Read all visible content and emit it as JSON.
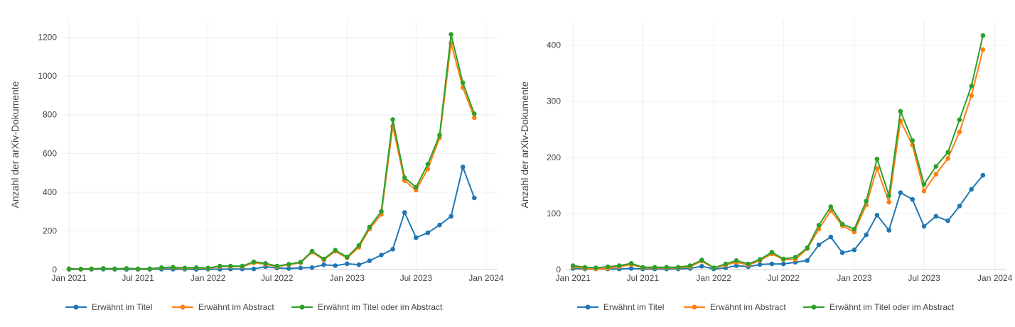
{
  "chart_data": [
    {
      "type": "line",
      "ylabel": "Anzahl der arXiv-Dokumente",
      "xlabel": "",
      "ylim": [
        0,
        1290
      ],
      "yticks": [
        0,
        200,
        400,
        600,
        800,
        1000,
        1200
      ],
      "xlim": [
        "2020-12-15",
        "2024-01-31"
      ],
      "xticks": [
        {
          "date": "2021-01-01",
          "label": "Jan 2021"
        },
        {
          "date": "2021-07-01",
          "label": "Jul 2021"
        },
        {
          "date": "2022-01-01",
          "label": "Jan 2022"
        },
        {
          "date": "2022-07-01",
          "label": "Jul 2022"
        },
        {
          "date": "2023-01-01",
          "label": "Jan 2023"
        },
        {
          "date": "2023-07-01",
          "label": "Jul 2023"
        },
        {
          "date": "2024-01-01",
          "label": "Jan 2024"
        }
      ],
      "grid": true,
      "legend_position": "bottom",
      "x": [
        "2021-01-01",
        "2021-02-01",
        "2021-03-01",
        "2021-04-01",
        "2021-05-01",
        "2021-06-01",
        "2021-07-01",
        "2021-08-01",
        "2021-09-01",
        "2021-10-01",
        "2021-11-01",
        "2021-12-01",
        "2022-01-01",
        "2022-02-01",
        "2022-03-01",
        "2022-04-01",
        "2022-05-01",
        "2022-06-01",
        "2022-07-01",
        "2022-08-01",
        "2022-09-01",
        "2022-10-01",
        "2022-11-01",
        "2022-12-01",
        "2023-01-01",
        "2023-02-01",
        "2023-03-01",
        "2023-04-01",
        "2023-05-01",
        "2023-06-01",
        "2023-07-01",
        "2023-08-01",
        "2023-09-01",
        "2023-10-01",
        "2023-11-01",
        "2023-12-01"
      ],
      "series": [
        {
          "name": "Erwähnt im Titel",
          "color": "#1f77b4",
          "values": [
            1,
            1,
            1,
            2,
            1,
            1,
            1,
            1,
            2,
            2,
            2,
            1,
            2,
            2,
            3,
            3,
            3,
            15,
            8,
            5,
            8,
            10,
            25,
            20,
            30,
            25,
            45,
            75,
            105,
            295,
            165,
            190,
            230,
            275,
            530,
            370
          ]
        },
        {
          "name": "Erwähnt im Abstract",
          "color": "#ff7f0e",
          "values": [
            3,
            2,
            3,
            5,
            3,
            5,
            3,
            3,
            8,
            10,
            6,
            8,
            6,
            15,
            15,
            15,
            35,
            28,
            15,
            25,
            35,
            90,
            50,
            95,
            60,
            115,
            210,
            285,
            740,
            460,
            410,
            520,
            680,
            1170,
            940,
            785
          ]
        },
        {
          "name": "Erwähnt im Titel oder im Abstract",
          "color": "#2ca02c",
          "values": [
            4,
            3,
            4,
            6,
            4,
            6,
            4,
            4,
            10,
            12,
            8,
            10,
            8,
            18,
            18,
            18,
            40,
            32,
            18,
            28,
            38,
            95,
            55,
            100,
            65,
            125,
            220,
            300,
            775,
            475,
            425,
            545,
            695,
            1215,
            965,
            805
          ]
        }
      ]
    },
    {
      "type": "line",
      "ylabel": "Anzahl der arXiv-Dokumente",
      "xlabel": "",
      "ylim": [
        0,
        445
      ],
      "yticks": [
        0,
        100,
        200,
        300,
        400
      ],
      "xlim": [
        "2020-12-15",
        "2024-01-31"
      ],
      "xticks": [
        {
          "date": "2021-01-01",
          "label": "Jan 2021"
        },
        {
          "date": "2021-07-01",
          "label": "Jul 2021"
        },
        {
          "date": "2022-01-01",
          "label": "Jan 2022"
        },
        {
          "date": "2022-07-01",
          "label": "Jul 2022"
        },
        {
          "date": "2023-01-01",
          "label": "Jan 2023"
        },
        {
          "date": "2023-07-01",
          "label": "Jul 2023"
        },
        {
          "date": "2024-01-01",
          "label": "Jan 2024"
        }
      ],
      "grid": true,
      "legend_position": "bottom",
      "x": [
        "2021-01-01",
        "2021-02-01",
        "2021-03-01",
        "2021-04-01",
        "2021-05-01",
        "2021-06-01",
        "2021-07-01",
        "2021-08-01",
        "2021-09-01",
        "2021-10-01",
        "2021-11-01",
        "2021-12-01",
        "2022-01-01",
        "2022-02-01",
        "2022-03-01",
        "2022-04-01",
        "2022-05-01",
        "2022-06-01",
        "2022-07-01",
        "2022-08-01",
        "2022-09-01",
        "2022-10-01",
        "2022-11-01",
        "2022-12-01",
        "2023-01-01",
        "2023-02-01",
        "2023-03-01",
        "2023-04-01",
        "2023-05-01",
        "2023-06-01",
        "2023-07-01",
        "2023-08-01",
        "2023-09-01",
        "2023-10-01",
        "2023-11-01",
        "2023-12-01"
      ],
      "series": [
        {
          "name": "Erwähnt im Titel",
          "color": "#1f77b4",
          "values": [
            2,
            1,
            1,
            1,
            1,
            2,
            1,
            1,
            1,
            1,
            2,
            6,
            1,
            3,
            7,
            5,
            9,
            10,
            10,
            13,
            16,
            44,
            58,
            30,
            35,
            62,
            97,
            70,
            137,
            125,
            77,
            95,
            87,
            113,
            143,
            168
          ]
        },
        {
          "name": "Erwähnt im Abstract",
          "color": "#ff7f0e",
          "values": [
            5,
            2,
            1,
            2,
            5,
            9,
            3,
            3,
            3,
            3,
            5,
            15,
            3,
            8,
            13,
            8,
            16,
            28,
            18,
            18,
            37,
            72,
            105,
            78,
            67,
            115,
            180,
            120,
            265,
            222,
            140,
            170,
            198,
            245,
            310,
            392
          ]
        },
        {
          "name": "Erwähnt im Titel oder im Abstract",
          "color": "#2ca02c",
          "values": [
            7,
            4,
            3,
            5,
            7,
            11,
            4,
            4,
            4,
            4,
            7,
            17,
            3,
            10,
            16,
            10,
            18,
            31,
            19,
            22,
            39,
            79,
            112,
            81,
            72,
            122,
            197,
            132,
            282,
            230,
            152,
            184,
            209,
            267,
            327,
            417
          ]
        }
      ]
    }
  ]
}
